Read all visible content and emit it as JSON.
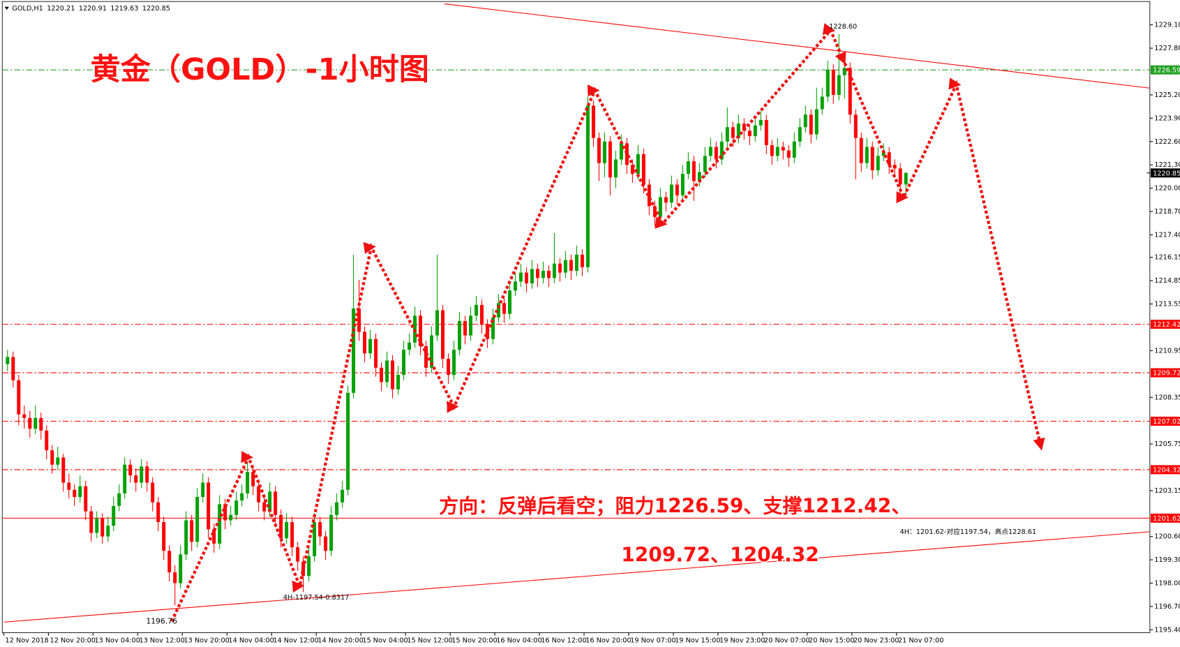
{
  "chart_data": {
    "type": "candlestick",
    "header": "GOLD,H1",
    "title": "黄金（GOLD）-1小时图",
    "annotations": [
      "方向：反弹后看空；阻力1226.59、支撑1212.42、",
      "1209.72、1204.32",
      "4H：1201.62-对应1197.54，高点1228.61",
      "4H-1197.54-0.8317",
      "1196.76",
      "1228.60"
    ],
    "up_color": "#00a000",
    "down_color": "#ff0000",
    "ylim": [
      1195.24,
      1230.4
    ],
    "yticks": [
      {
        "value": 1229.1,
        "label": "1229.10"
      },
      {
        "value": 1227.8,
        "label": "1227.80"
      },
      {
        "value": 1225.2,
        "label": "1225.20"
      },
      {
        "value": 1223.9,
        "label": "1223.90"
      },
      {
        "value": 1222.6,
        "label": "1222.60"
      },
      {
        "value": 1221.3,
        "label": "1221.30"
      },
      {
        "value": 1220,
        "label": "1220.00"
      },
      {
        "value": 1218.7,
        "label": "1218.70"
      },
      {
        "value": 1217.4,
        "label": "1217.40"
      },
      1216.15,
      1214.85,
      1213.55,
      1210.95,
      1208.35,
      1205.75,
      1203.15,
      {
        "value": 1200.6,
        "label": "1200.60"
      },
      {
        "value": 1199.3,
        "label": "1199.30"
      },
      {
        "value": 1198,
        "label": "1198.00"
      },
      {
        "value": 1196.7,
        "label": "1196.70"
      },
      {
        "value": 1195.4,
        "label": "1195.40"
      }
    ],
    "xticks": [
      {
        "value": 0,
        "label": "12 Nov 2018"
      },
      {
        "value": 8,
        "label": "12 Nov 20:00"
      },
      {
        "value": 16,
        "label": "13 Nov 04:00"
      },
      {
        "value": 24,
        "label": "13 Nov 12:00"
      },
      {
        "value": 32,
        "label": "13 Nov 20:00"
      },
      {
        "value": 40,
        "label": "14 Nov 04:00"
      },
      {
        "value": 48,
        "label": "14 Nov 12:00"
      },
      {
        "value": 56,
        "label": "14 Nov 20:00"
      },
      {
        "value": 64,
        "label": "15 Nov 04:00"
      },
      {
        "value": 72,
        "label": "15 Nov 12:00"
      },
      {
        "value": 80,
        "label": "15 Nov 20:00"
      },
      {
        "value": 88,
        "label": "16 Nov 04:00"
      },
      {
        "value": 96,
        "label": "16 Nov 12:00"
      },
      {
        "value": 104,
        "label": "16 Nov 20:00"
      },
      {
        "value": 112,
        "label": "19 Nov 07:00"
      },
      {
        "value": 120,
        "label": "19 Nov 15:00"
      },
      {
        "value": 128,
        "label": "19 Nov 23:00"
      },
      {
        "value": 136,
        "label": "20 Nov 07:00"
      },
      {
        "value": 144,
        "label": "20 Nov 15:00"
      },
      {
        "value": 152,
        "label": "20 Nov 23:00"
      },
      {
        "value": 160,
        "label": "21 Nov 07:00"
      }
    ],
    "hlines": [
      {
        "value": 1226.59,
        "color": "#22a022",
        "style": "dashdot"
      },
      {
        "value": 1212.42,
        "color": "#ff0000",
        "style": "dashdot"
      },
      {
        "value": 1209.72,
        "color": "#ff0000",
        "style": "dashdot"
      },
      {
        "value": 1207.02,
        "color": "#ff0000",
        "style": "dashdot"
      },
      {
        "value": 1204.32,
        "color": "#ff0000",
        "style": "dashdot"
      },
      {
        "value": 1201.62,
        "color": "#ff0000",
        "style": "solid"
      }
    ],
    "current_price": 1220.85,
    "current_color": "#000000",
    "candles": [
      [
        1210.2,
        1211.0,
        1209.8,
        1210.6
      ],
      [
        1210.6,
        1210.9,
        1208.9,
        1209.3
      ],
      [
        1209.3,
        1209.6,
        1206.8,
        1207.4
      ],
      [
        1207.4,
        1207.9,
        1206.6,
        1207.2
      ],
      [
        1207.2,
        1207.6,
        1206.1,
        1206.6
      ],
      [
        1206.6,
        1207.9,
        1206.3,
        1207.2
      ],
      [
        1207.2,
        1207.5,
        1206.0,
        1206.5
      ],
      [
        1206.5,
        1206.8,
        1204.9,
        1205.4
      ],
      [
        1205.4,
        1205.7,
        1204.1,
        1204.6
      ],
      [
        1204.6,
        1205.6,
        1204.3,
        1205.0
      ],
      [
        1205.0,
        1205.2,
        1203.1,
        1203.6
      ],
      [
        1203.6,
        1204.1,
        1202.7,
        1203.2
      ],
      [
        1203.2,
        1203.5,
        1202.3,
        1202.8
      ],
      [
        1202.8,
        1204.0,
        1202.5,
        1203.4
      ],
      [
        1203.4,
        1203.7,
        1201.5,
        1202.0
      ],
      [
        1202.0,
        1202.3,
        1200.3,
        1200.8
      ],
      [
        1200.8,
        1202.0,
        1200.5,
        1201.6
      ],
      [
        1201.6,
        1201.9,
        1200.2,
        1200.6
      ],
      [
        1200.6,
        1201.7,
        1200.3,
        1201.2
      ],
      [
        1201.2,
        1202.8,
        1200.9,
        1202.3
      ],
      [
        1202.3,
        1203.5,
        1202.0,
        1203.0
      ],
      [
        1203.0,
        1205.0,
        1202.7,
        1204.6
      ],
      [
        1204.6,
        1204.9,
        1203.6,
        1204.0
      ],
      [
        1204.0,
        1204.4,
        1203.1,
        1203.6
      ],
      [
        1203.6,
        1204.9,
        1203.3,
        1204.5
      ],
      [
        1204.5,
        1204.8,
        1203.1,
        1203.6
      ],
      [
        1203.6,
        1203.9,
        1202.0,
        1202.5
      ],
      [
        1202.5,
        1202.8,
        1200.9,
        1201.4
      ],
      [
        1201.4,
        1201.7,
        1199.3,
        1199.8
      ],
      [
        1199.8,
        1200.1,
        1198.1,
        1198.6
      ],
      [
        1198.6,
        1199.0,
        1196.76,
        1198.0
      ],
      [
        1198.0,
        1200.1,
        1197.7,
        1199.6
      ],
      [
        1199.6,
        1202.0,
        1199.3,
        1201.5
      ],
      [
        1201.5,
        1201.8,
        1199.8,
        1200.3
      ],
      [
        1200.3,
        1203.3,
        1200.0,
        1202.8
      ],
      [
        1202.8,
        1204.1,
        1202.5,
        1203.6
      ],
      [
        1203.6,
        1203.9,
        1200.5,
        1201.0
      ],
      [
        1201.0,
        1201.3,
        1199.7,
        1200.2
      ],
      [
        1200.2,
        1202.9,
        1199.9,
        1202.4
      ],
      [
        1202.4,
        1202.7,
        1201.0,
        1201.5
      ],
      [
        1201.5,
        1202.3,
        1201.2,
        1201.8
      ],
      [
        1201.8,
        1203.1,
        1201.5,
        1202.6
      ],
      [
        1202.6,
        1203.5,
        1202.3,
        1203.0
      ],
      [
        1203.0,
        1204.8,
        1202.7,
        1204.2
      ],
      [
        1204.2,
        1204.5,
        1202.9,
        1203.4
      ],
      [
        1203.4,
        1203.7,
        1202.0,
        1202.5
      ],
      [
        1202.5,
        1202.8,
        1201.5,
        1202.0
      ],
      [
        1202.0,
        1203.6,
        1201.7,
        1203.1
      ],
      [
        1203.1,
        1203.4,
        1201.3,
        1201.8
      ],
      [
        1201.8,
        1202.1,
        1200.0,
        1200.5
      ],
      [
        1200.5,
        1201.9,
        1200.2,
        1201.4
      ],
      [
        1201.4,
        1201.7,
        1199.5,
        1200.0
      ],
      [
        1200.0,
        1200.3,
        1198.7,
        1199.2
      ],
      [
        1199.2,
        1199.5,
        1197.5,
        1198.4
      ],
      [
        1198.4,
        1200.0,
        1198.1,
        1199.5
      ],
      [
        1199.5,
        1201.9,
        1199.2,
        1201.4
      ],
      [
        1201.4,
        1201.7,
        1200.1,
        1200.6
      ],
      [
        1200.6,
        1200.9,
        1199.3,
        1199.8
      ],
      [
        1199.8,
        1202.3,
        1199.5,
        1201.8
      ],
      [
        1201.8,
        1203.0,
        1201.5,
        1202.5
      ],
      [
        1202.5,
        1203.7,
        1202.2,
        1203.2
      ],
      [
        1203.2,
        1209.0,
        1202.9,
        1208.6
      ],
      [
        1208.6,
        1216.3,
        1208.3,
        1213.3
      ],
      [
        1213.3,
        1214.9,
        1211.5,
        1212.0
      ],
      [
        1212.0,
        1212.3,
        1210.3,
        1210.8
      ],
      [
        1210.8,
        1212.1,
        1210.5,
        1211.6
      ],
      [
        1211.6,
        1211.9,
        1209.5,
        1210.0
      ],
      [
        1210.0,
        1210.3,
        1208.7,
        1209.2
      ],
      [
        1209.2,
        1210.9,
        1208.9,
        1210.4
      ],
      [
        1210.4,
        1210.7,
        1208.3,
        1208.8
      ],
      [
        1208.8,
        1210.1,
        1208.5,
        1209.6
      ],
      [
        1209.6,
        1211.5,
        1209.3,
        1211.0
      ],
      [
        1211.0,
        1211.9,
        1210.7,
        1211.4
      ],
      [
        1211.4,
        1213.4,
        1211.1,
        1212.9
      ],
      [
        1212.9,
        1213.2,
        1210.7,
        1211.2
      ],
      [
        1211.2,
        1211.5,
        1209.5,
        1210.0
      ],
      [
        1210.0,
        1212.3,
        1209.7,
        1211.8
      ],
      [
        1211.8,
        1216.3,
        1211.5,
        1213.2
      ],
      [
        1213.2,
        1213.5,
        1210.0,
        1210.5
      ],
      [
        1210.5,
        1210.8,
        1209.1,
        1209.6
      ],
      [
        1209.6,
        1211.5,
        1209.3,
        1211.0
      ],
      [
        1211.0,
        1213.1,
        1210.7,
        1212.6
      ],
      [
        1212.6,
        1212.9,
        1211.3,
        1211.8
      ],
      [
        1211.8,
        1213.4,
        1211.5,
        1212.9
      ],
      [
        1212.9,
        1214.0,
        1212.6,
        1213.5
      ],
      [
        1213.5,
        1213.8,
        1211.9,
        1212.4
      ],
      [
        1212.4,
        1212.7,
        1211.1,
        1211.6
      ],
      [
        1211.6,
        1213.3,
        1211.3,
        1212.8
      ],
      [
        1212.8,
        1214.1,
        1212.5,
        1213.6
      ],
      [
        1213.6,
        1213.9,
        1212.5,
        1213.0
      ],
      [
        1213.0,
        1214.8,
        1212.7,
        1214.3
      ],
      [
        1214.3,
        1215.3,
        1214.0,
        1214.8
      ],
      [
        1214.8,
        1215.8,
        1214.5,
        1215.3
      ],
      [
        1215.3,
        1215.6,
        1214.2,
        1214.7
      ],
      [
        1214.7,
        1216.0,
        1214.4,
        1215.5
      ],
      [
        1215.5,
        1215.8,
        1214.5,
        1215.0
      ],
      [
        1215.0,
        1215.9,
        1214.7,
        1215.4
      ],
      [
        1215.4,
        1215.7,
        1214.5,
        1215.0
      ],
      [
        1215.0,
        1217.5,
        1214.7,
        1215.8
      ],
      [
        1215.8,
        1216.1,
        1214.8,
        1215.3
      ],
      [
        1215.3,
        1216.5,
        1215.0,
        1216.0
      ],
      [
        1216.0,
        1216.3,
        1214.9,
        1215.4
      ],
      [
        1215.4,
        1216.8,
        1215.1,
        1216.3
      ],
      [
        1216.3,
        1216.6,
        1215.1,
        1215.6
      ],
      [
        1215.6,
        1225.1,
        1215.3,
        1224.6
      ],
      [
        1224.6,
        1224.9,
        1222.3,
        1222.8
      ],
      [
        1222.8,
        1223.1,
        1220.4,
        1221.4
      ],
      [
        1221.4,
        1223.1,
        1220.6,
        1222.6
      ],
      [
        1222.6,
        1222.9,
        1219.6,
        1220.6
      ],
      [
        1220.6,
        1222.1,
        1220.0,
        1221.6
      ],
      [
        1221.6,
        1223.0,
        1221.3,
        1222.5
      ],
      [
        1222.5,
        1222.8,
        1220.8,
        1221.3
      ],
      [
        1221.3,
        1221.6,
        1220.3,
        1220.8
      ],
      [
        1220.8,
        1222.4,
        1220.5,
        1221.9
      ],
      [
        1221.9,
        1222.2,
        1219.7,
        1220.2
      ],
      [
        1220.2,
        1220.5,
        1218.5,
        1219.0
      ],
      [
        1219.0,
        1219.3,
        1217.9,
        1218.4
      ],
      [
        1218.4,
        1220.0,
        1218.1,
        1219.5
      ],
      [
        1219.5,
        1219.8,
        1218.7,
        1219.2
      ],
      [
        1219.2,
        1220.7,
        1218.9,
        1220.2
      ],
      [
        1220.2,
        1220.5,
        1219.1,
        1219.6
      ],
      [
        1219.6,
        1221.3,
        1219.3,
        1220.8
      ],
      [
        1220.8,
        1222.0,
        1220.5,
        1221.5
      ],
      [
        1221.5,
        1221.8,
        1219.3,
        1220.4
      ],
      [
        1220.4,
        1221.4,
        1220.1,
        1220.9
      ],
      [
        1220.9,
        1222.3,
        1220.6,
        1221.8
      ],
      [
        1221.8,
        1222.8,
        1221.5,
        1222.3
      ],
      [
        1222.3,
        1222.6,
        1221.1,
        1221.6
      ],
      [
        1221.6,
        1223.1,
        1221.3,
        1222.6
      ],
      [
        1222.6,
        1224.5,
        1222.3,
        1223.4
      ],
      [
        1223.4,
        1223.7,
        1222.3,
        1222.8
      ],
      [
        1222.8,
        1224.1,
        1222.5,
        1223.6
      ],
      [
        1223.6,
        1223.9,
        1222.7,
        1223.2
      ],
      [
        1223.2,
        1223.5,
        1222.4,
        1222.9
      ],
      [
        1222.9,
        1224.0,
        1222.6,
        1223.5
      ],
      [
        1223.5,
        1224.3,
        1223.2,
        1223.8
      ],
      [
        1223.8,
        1224.1,
        1221.9,
        1222.4
      ],
      [
        1222.4,
        1222.7,
        1221.3,
        1221.8
      ],
      [
        1221.8,
        1222.8,
        1221.5,
        1222.3
      ],
      [
        1222.3,
        1222.6,
        1221.6,
        1222.1
      ],
      [
        1222.1,
        1222.4,
        1221.2,
        1221.7
      ],
      [
        1221.7,
        1223.1,
        1221.4,
        1222.6
      ],
      [
        1222.6,
        1223.9,
        1222.3,
        1223.4
      ],
      [
        1223.4,
        1224.6,
        1223.1,
        1224.1
      ],
      [
        1224.1,
        1224.4,
        1222.5,
        1223.0
      ],
      [
        1223.0,
        1225.6,
        1222.7,
        1224.4
      ],
      [
        1224.4,
        1225.6,
        1224.1,
        1225.1
      ],
      [
        1225.1,
        1227.1,
        1224.8,
        1226.6
      ],
      [
        1226.6,
        1226.9,
        1224.7,
        1225.2
      ],
      [
        1225.2,
        1228.6,
        1224.9,
        1226.3
      ],
      [
        1226.3,
        1227.2,
        1225.0,
        1226.7
      ],
      [
        1226.7,
        1227.0,
        1223.6,
        1224.1
      ],
      [
        1224.1,
        1224.4,
        1220.5,
        1222.8
      ],
      [
        1222.8,
        1223.1,
        1220.9,
        1221.4
      ],
      [
        1221.4,
        1222.8,
        1221.1,
        1222.3
      ],
      [
        1222.3,
        1222.6,
        1220.5,
        1221.0
      ],
      [
        1221.0,
        1222.3,
        1220.7,
        1221.8
      ],
      [
        1221.8,
        1222.5,
        1221.5,
        1222.0
      ],
      [
        1222.0,
        1222.3,
        1220.8,
        1221.3
      ],
      [
        1221.3,
        1221.6,
        1220.6,
        1221.1
      ],
      [
        1221.1,
        1221.4,
        1219.4,
        1220.21
      ],
      [
        1220.21,
        1220.91,
        1219.63,
        1220.85
      ]
    ]
  }
}
